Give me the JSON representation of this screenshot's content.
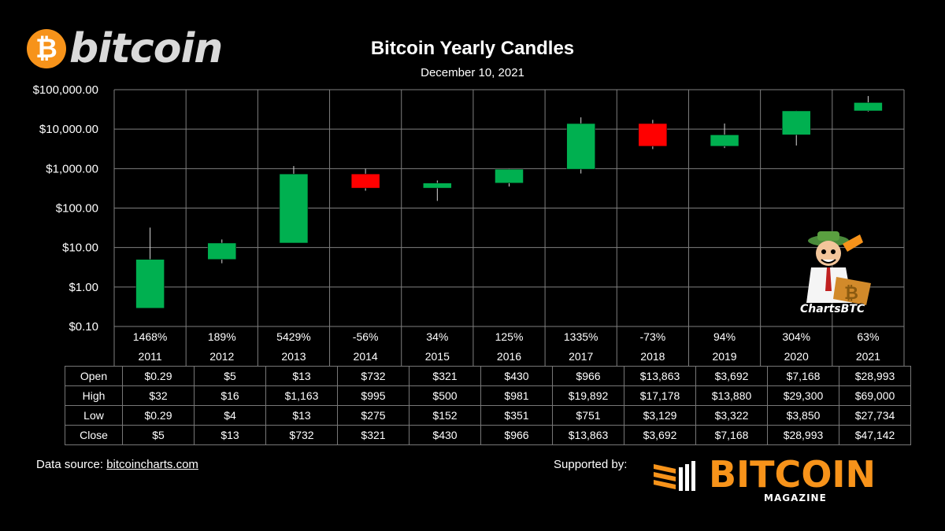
{
  "brand": {
    "coin_symbol": "₿",
    "wordmark": "bitcoin",
    "coin_color": "#f7931a"
  },
  "header": {
    "title": "Bitcoin Yearly Candles",
    "subtitle": "December 10, 2021"
  },
  "chart_data": {
    "type": "candlestick",
    "yscale": "log",
    "ylim": [
      0.1,
      100000
    ],
    "yticks": [
      {
        "value": 100000,
        "label": "$100,000.00"
      },
      {
        "value": 10000,
        "label": "$10,000.00"
      },
      {
        "value": 1000,
        "label": "$1,000.00"
      },
      {
        "value": 100,
        "label": "$100.00"
      },
      {
        "value": 10,
        "label": "$10.00"
      },
      {
        "value": 1,
        "label": "$1.00"
      },
      {
        "value": 0.1,
        "label": "$0.10"
      }
    ],
    "grid": true,
    "up_color": "#00b050",
    "down_color": "#ff0000",
    "categories": [
      "2011",
      "2012",
      "2013",
      "2014",
      "2015",
      "2016",
      "2017",
      "2018",
      "2019",
      "2020",
      "2021"
    ],
    "percent_change": [
      "1468%",
      "189%",
      "5429%",
      "-56%",
      "34%",
      "125%",
      "1335%",
      "-73%",
      "94%",
      "304%",
      "63%"
    ],
    "open": [
      0.29,
      5,
      13,
      732,
      321,
      430,
      966,
      13863,
      3692,
      7168,
      28993
    ],
    "high": [
      32,
      16,
      1163,
      995,
      500,
      981,
      19892,
      17178,
      13880,
      29300,
      69000
    ],
    "low": [
      0.29,
      4,
      13,
      275,
      152,
      351,
      751,
      3129,
      3322,
      3850,
      27734
    ],
    "close": [
      5,
      13,
      732,
      321,
      430,
      966,
      13863,
      3692,
      7168,
      28993,
      47142
    ]
  },
  "table": {
    "rows": [
      {
        "label": "Open",
        "cells": [
          "$0.29",
          "$5",
          "$13",
          "$732",
          "$321",
          "$430",
          "$966",
          "$13,863",
          "$3,692",
          "$7,168",
          "$28,993"
        ]
      },
      {
        "label": "High",
        "cells": [
          "$32",
          "$16",
          "$1,163",
          "$995",
          "$500",
          "$981",
          "$19,892",
          "$17,178",
          "$13,880",
          "$29,300",
          "$69,000"
        ]
      },
      {
        "label": "Low",
        "cells": [
          "$0.29",
          "$4",
          "$13",
          "$275",
          "$152",
          "$351",
          "$751",
          "$3,129",
          "$3,322",
          "$3,850",
          "$27,734"
        ]
      },
      {
        "label": "Close",
        "cells": [
          "$5",
          "$13",
          "$732",
          "$321",
          "$430",
          "$966",
          "$13,863",
          "$3,692",
          "$7,168",
          "$28,993",
          "$47,142"
        ]
      }
    ]
  },
  "footer": {
    "source_prefix": "Data source: ",
    "source_link": "bitcoincharts.com",
    "supported_by": "Supported by:",
    "magazine_word": "BITCOIN",
    "magazine_sub": "MAGAZINE"
  },
  "mascot": {
    "label": "ChartsBTC"
  }
}
